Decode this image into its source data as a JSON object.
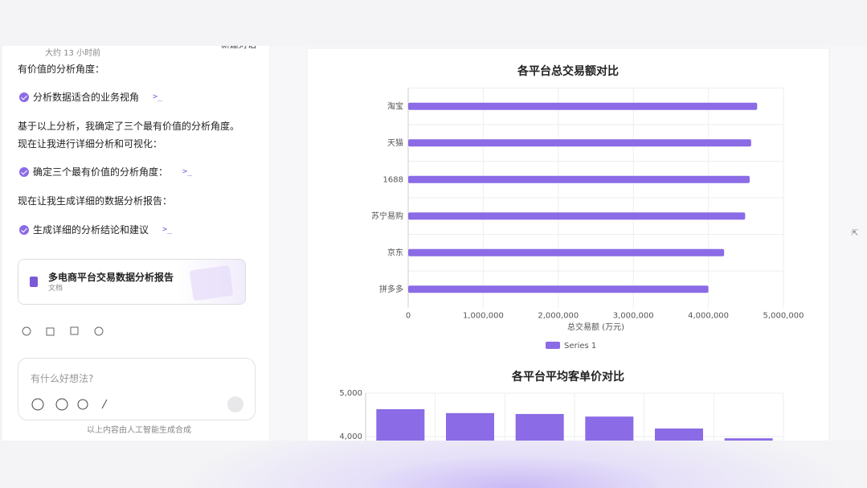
{
  "chat": {
    "timestamp": "大约 13 小时前",
    "new_chat": "新建对话",
    "messages": [
      {
        "kind": "text",
        "text": "有价值的分析角度："
      },
      {
        "kind": "step",
        "text": "分析数据适合的业务视角"
      },
      {
        "kind": "text",
        "text": "基于以上分析，我确定了三个最有价值的分析角度。现在让我进行详细分析和可视化："
      },
      {
        "kind": "step",
        "text": "确定三个最有价值的分析角度："
      },
      {
        "kind": "text",
        "text": "现在让我生成详细的数据分析报告："
      },
      {
        "kind": "step",
        "text": "生成详细的分析结论和建议"
      }
    ],
    "document_card": {
      "title": "多电商平台交易数据分析报告",
      "subtitle": "文档"
    },
    "input_placeholder": "有什么好想法?",
    "footer": "以上内容由人工智能生成合成"
  },
  "chart_data": [
    {
      "type": "bar",
      "orientation": "horizontal",
      "title": "各平台总交易额对比",
      "categories": [
        "淘宝",
        "天猫",
        "1688",
        "苏宁易购",
        "京东",
        "拼多多"
      ],
      "series": [
        {
          "name": "Series 1",
          "color": "#8b6be6",
          "values": [
            4650000,
            4570000,
            4550000,
            4490000,
            4210000,
            4000000
          ]
        }
      ],
      "x_label": "总交易额 (万元)",
      "xlim": [
        0,
        5000000
      ],
      "xticks": [
        0,
        {
          "value": 1000000,
          "label": "1,000,000"
        },
        {
          "value": 2000000,
          "label": "2,000,000"
        },
        {
          "value": 3000000,
          "label": "3,000,000"
        },
        {
          "value": 4000000,
          "label": "4,000,000"
        },
        {
          "value": 5000000,
          "label": "5,000,000"
        }
      ],
      "grid": true,
      "legend": "bottom"
    },
    {
      "type": "bar",
      "orientation": "vertical",
      "title": "各平台平均客单价对比",
      "categories": [
        null,
        null,
        null,
        null,
        null,
        null
      ],
      "values": [
        4630,
        4540,
        4520,
        4460,
        4185,
        3960
      ],
      "color": "#8b6be6",
      "ylim": [
        3000,
        5000
      ],
      "yticks": [
        {
          "value": 4000,
          "label": "4,000"
        },
        {
          "value": 5000,
          "label": "5,000"
        }
      ],
      "grid": true
    }
  ]
}
